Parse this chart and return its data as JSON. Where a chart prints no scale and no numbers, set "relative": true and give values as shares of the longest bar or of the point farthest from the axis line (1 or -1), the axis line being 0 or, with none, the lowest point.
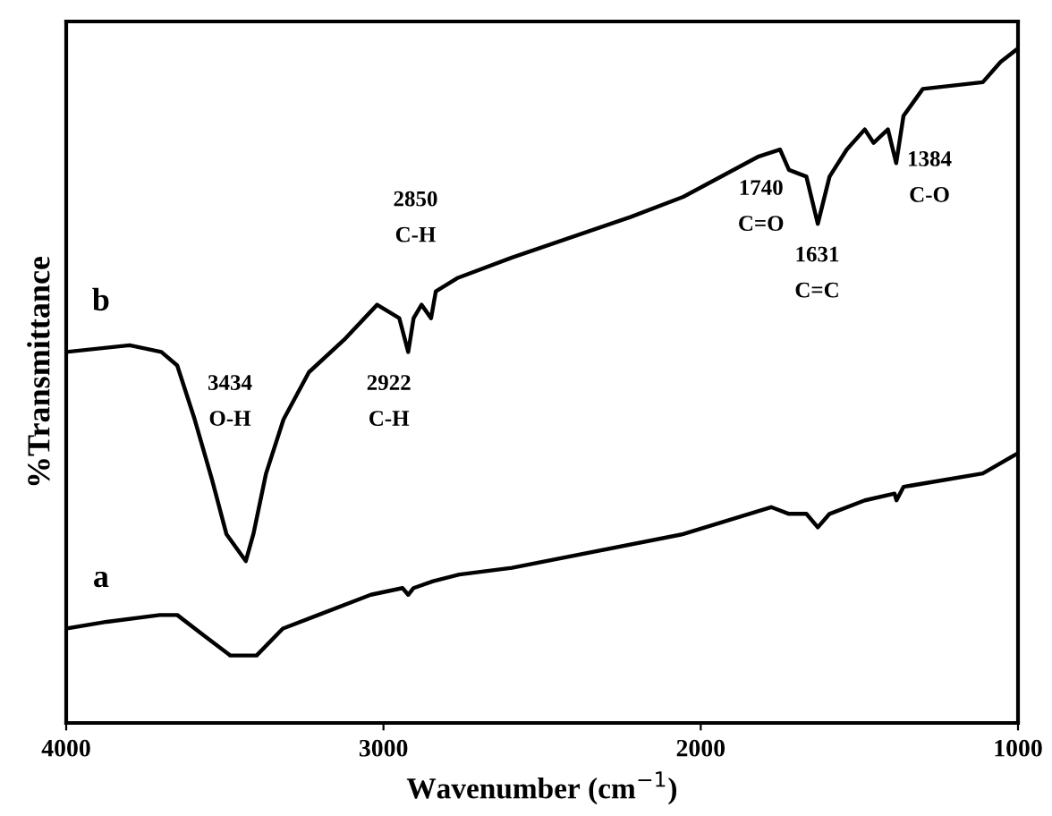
{
  "chart_data": {
    "type": "line",
    "relative": true,
    "xlabel": "Wavenumber (cm$^{−1}$)",
    "ylabel": "%Transmittance",
    "xlim": [
      4000,
      1000
    ],
    "xticks": [
      4000,
      3000,
      2000,
      1000
    ],
    "grid": false,
    "legend": false,
    "marker": "none",
    "line_style": "solid",
    "series": [
      {
        "name": "b",
        "color": "#000000",
        "x": [
          4000,
          3800,
          3700,
          3650,
          3595,
          3540,
          3495,
          3434,
          3410,
          3370,
          3315,
          3235,
          3120,
          3020,
          2985,
          2950,
          2922,
          2905,
          2880,
          2865,
          2850,
          2835,
          2765,
          2595,
          2222,
          2055,
          1817,
          1750,
          1722,
          1667,
          1631,
          1594,
          1540,
          1483,
          1455,
          1410,
          1384,
          1361,
          1300,
          1111,
          1055,
          1000
        ],
        "values": [
          0.55,
          0.56,
          0.55,
          0.53,
          0.45,
          0.36,
          0.28,
          0.24,
          0.28,
          0.37,
          0.45,
          0.52,
          0.57,
          0.62,
          0.61,
          0.6,
          0.55,
          0.6,
          0.62,
          0.61,
          0.6,
          0.64,
          0.66,
          0.69,
          0.75,
          0.78,
          0.84,
          0.85,
          0.82,
          0.81,
          0.74,
          0.81,
          0.85,
          0.88,
          0.86,
          0.88,
          0.83,
          0.9,
          0.94,
          0.95,
          0.98,
          1.0
        ]
      },
      {
        "name": "a",
        "color": "#000000",
        "x": [
          4000,
          3872,
          3705,
          3650,
          3567,
          3483,
          3434,
          3400,
          3317,
          3206,
          3040,
          2940,
          2922,
          2905,
          2844,
          2761,
          2595,
          2055,
          1778,
          1722,
          1667,
          1631,
          1594,
          1483,
          1389,
          1383,
          1361,
          1111,
          1000
        ],
        "values": [
          0.14,
          0.15,
          0.16,
          0.16,
          0.13,
          0.1,
          0.1,
          0.1,
          0.14,
          0.16,
          0.19,
          0.2,
          0.19,
          0.2,
          0.21,
          0.22,
          0.23,
          0.28,
          0.32,
          0.31,
          0.31,
          0.29,
          0.31,
          0.33,
          0.34,
          0.33,
          0.35,
          0.37,
          0.4
        ]
      }
    ],
    "annotations": [
      "3434\nO-H",
      "2922\nC-H",
      "2850\nC-H",
      "1740\nC=O",
      "1631\nC=C",
      "1384\nC-O"
    ]
  }
}
